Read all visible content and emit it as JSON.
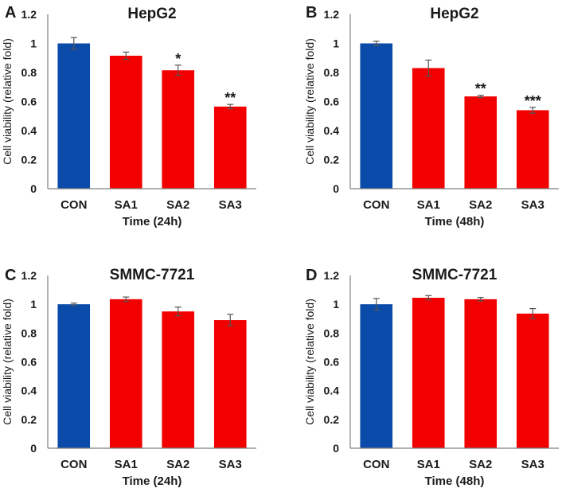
{
  "chart_data": [
    {
      "panel": "A",
      "type": "bar",
      "title": "HepG2",
      "xlabel": "Time  (24h)",
      "ylabel": "Cell viability (relative fold)",
      "categories": [
        "CON",
        "SA1",
        "SA2",
        "SA3"
      ],
      "values": [
        1.0,
        0.915,
        0.815,
        0.565
      ],
      "errors": [
        0.04,
        0.025,
        0.035,
        0.015
      ],
      "significance": [
        "",
        "",
        "*",
        "**"
      ],
      "colors": [
        "#0a4aa8",
        "#f20000",
        "#f20000",
        "#f20000"
      ],
      "ylim": [
        0,
        1.2
      ],
      "yticks": [
        "0",
        "0.2",
        "0.4",
        "0.6",
        "0.8",
        "1",
        "1.2"
      ]
    },
    {
      "panel": "B",
      "type": "bar",
      "title": "HepG2",
      "xlabel": "Time (48h)",
      "ylabel": "Cell viability (relative fold)",
      "categories": [
        "CON",
        "SA1",
        "SA2",
        "SA3"
      ],
      "values": [
        1.0,
        0.83,
        0.635,
        0.54
      ],
      "errors": [
        0.015,
        0.055,
        0.008,
        0.02
      ],
      "significance": [
        "",
        "",
        "**",
        "***"
      ],
      "colors": [
        "#0a4aa8",
        "#f20000",
        "#f20000",
        "#f20000"
      ],
      "ylim": [
        0,
        1.2
      ],
      "yticks": [
        "0",
        "0.2",
        "0.4",
        "0.6",
        "0.8",
        "1",
        "1.2"
      ]
    },
    {
      "panel": "C",
      "type": "bar",
      "title": "SMMC-7721",
      "xlabel": "Time (24h)",
      "ylabel": "Cell viability (relative fold)",
      "categories": [
        "CON",
        "SA1",
        "SA2",
        "SA3"
      ],
      "values": [
        1.0,
        1.035,
        0.95,
        0.89
      ],
      "errors": [
        0.008,
        0.015,
        0.03,
        0.04
      ],
      "significance": [
        "",
        "",
        "",
        ""
      ],
      "colors": [
        "#0a4aa8",
        "#f20000",
        "#f20000",
        "#f20000"
      ],
      "ylim": [
        0,
        1.2
      ],
      "yticks": [
        "0",
        "0.2",
        "0.4",
        "0.6",
        "0.8",
        "1",
        "1.2"
      ]
    },
    {
      "panel": "D",
      "type": "bar",
      "title": "SMMC-7721",
      "xlabel": "Time (48h)",
      "ylabel": "Cell viability (relative fold)",
      "categories": [
        "CON",
        "SA1",
        "SA2",
        "SA3"
      ],
      "values": [
        1.0,
        1.045,
        1.035,
        0.935
      ],
      "errors": [
        0.04,
        0.015,
        0.012,
        0.035
      ],
      "significance": [
        "",
        "",
        "",
        ""
      ],
      "colors": [
        "#0a4aa8",
        "#f20000",
        "#f20000",
        "#f20000"
      ],
      "ylim": [
        0,
        1.2
      ],
      "yticks": [
        "0",
        "0.2",
        "0.4",
        "0.6",
        "0.8",
        "1",
        "1.2"
      ]
    }
  ]
}
